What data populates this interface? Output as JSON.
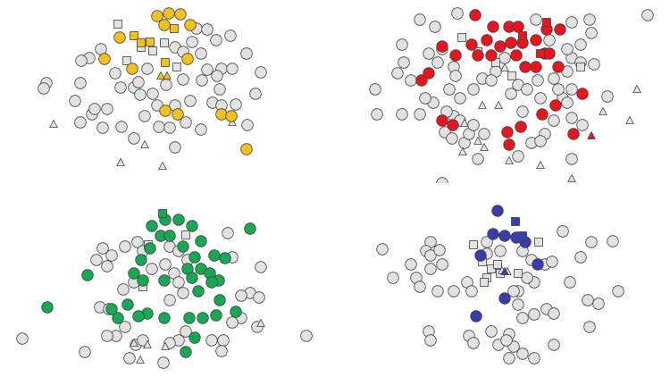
{
  "chart_data": [
    {
      "type": "scatter",
      "xlim": [
        0,
        370
      ],
      "ylim": [
        205,
        0
      ],
      "series": [
        {
          "color": "#e2e2e2",
          "marker": "circle",
          "x": [
            220,
            232,
            242,
            258,
            276,
            292,
            286,
            264,
            100,
            91,
            113,
            129,
            90,
            135,
            150,
            157,
            165,
            196,
            205,
            215,
            225,
            232,
            248,
            260,
            246,
            238,
            205,
            196,
            176,
            162,
            178,
            190,
            208,
            225,
            150,
            196,
            136,
            115,
            90,
            103,
            120,
            84,
            52,
            49,
            106,
            248,
            277,
            213,
            226,
            243,
            186,
            171,
            155
          ],
          "y": [
            32,
            33,
            45,
            40,
            60,
            81,
            105,
            117,
            65,
            68,
            55,
            82,
            93,
            98,
            98,
            106,
            77,
            53,
            58,
            47,
            60,
            78,
            77,
            77,
            100,
            115,
            89,
            118,
            118,
            130,
            142,
            143,
            137,
            145,
            155,
            165,
            142,
            143,
            137,
            128,
            122,
            113,
            93,
            99,
            122,
            118,
            140,
            113,
            90,
            85,
            95,
            105,
            92
          ]
        },
        {
          "color": "#e2e2e2",
          "marker": "square",
          "x": [
            132,
            142,
            198,
            158,
            184,
            171
          ],
          "y": [
            27,
            68,
            75,
            53,
            48,
            57
          ]
        },
        {
          "color": "#e2e2e2",
          "marker": "triangle",
          "x": [
            60,
            135,
            162,
            182,
            260
          ],
          "y": [
            139,
            182,
            162,
            186,
            137
          ]
        },
        {
          "color": "#f4c11a",
          "marker": "circle",
          "x": [
            176,
            189,
            202,
            184,
            213,
            134,
            117,
            148,
            210,
            185,
            199,
            248,
            259,
            276
          ],
          "y": [
            18,
            15,
            16,
            28,
            28,
            42,
            66,
            77,
            66,
            124,
            128,
            128,
            130,
            167
          ]
        },
        {
          "color": "#f4c11a",
          "marker": "square",
          "x": [
            150,
            168,
            158,
            185,
            195
          ],
          "y": [
            40,
            47,
            48,
            70,
            32
          ]
        },
        {
          "color": "#f4c11a",
          "marker": "triangle",
          "x": [
            180,
            187
          ],
          "y": [
            85,
            85
          ]
        }
      ]
    },
    {
      "type": "scatter",
      "xlim": [
        0,
        370
      ],
      "ylim": [
        205,
        0
      ],
      "series": [
        {
          "color": "#e2e2e2",
          "marker": "circle",
          "x": [
            90,
            107,
            132,
            220,
            260,
            280,
            282,
            345,
            70,
            72,
            65,
            80,
            40,
            42,
            70,
            90,
            115,
            128,
            130,
            123,
            135,
            150,
            160,
            175,
            192,
            200,
            210,
            222,
            240,
            255,
            260,
            270,
            285,
            300,
            260,
            250,
            240,
            260,
            272,
            255,
            230,
            215,
            200,
            225,
            260,
            128,
            118,
            126,
            140,
            155,
            162,
            145,
            205,
            225,
            245,
            270,
            255,
            235,
            185,
            170,
            115,
            150,
            135,
            120,
            105,
            96,
            110,
            100
          ],
          "y": [
            22,
            30,
            15,
            22,
            25,
            22,
            37,
            17,
            50,
            70,
            82,
            90,
            100,
            128,
            128,
            128,
            55,
            75,
            85,
            100,
            110,
            100,
            88,
            80,
            105,
            95,
            100,
            90,
            88,
            80,
            65,
            70,
            72,
            108,
            100,
            110,
            135,
            132,
            140,
            115,
            150,
            160,
            175,
            158,
            178,
            130,
            148,
            155,
            160,
            178,
            150,
            150,
            125,
            110,
            100,
            50,
            55,
            45,
            65,
            90,
            205,
            140,
            135,
            125,
            115,
            110,
            70,
            60
          ]
        },
        {
          "color": "#e2e2e2",
          "marker": "square",
          "x": [
            137,
            193,
            155,
            270,
            175
          ],
          "y": [
            42,
            85,
            58,
            75,
            70
          ]
        },
        {
          "color": "#e2e2e2",
          "marker": "triangle",
          "x": [
            185,
            160,
            178,
            140,
            155,
            138,
            162,
            190,
            225,
            260,
            295,
            325,
            333
          ],
          "y": [
            76,
            118,
            118,
            138,
            158,
            170,
            165,
            180,
            185,
            200,
            125,
            135,
            100
          ]
        },
        {
          "color": "#e8141e",
          "marker": "circle",
          "x": [
            152,
            172,
            190,
            200,
            165,
            180,
            192,
            148,
            155,
            170,
            205,
            220,
            232,
            247,
            230,
            220,
            208,
            198,
            115,
            130,
            100,
            92,
            115,
            127,
            203,
            190,
            188,
            227,
            242,
            262,
            272,
            235,
            245
          ],
          "y": [
            17,
            30,
            30,
            30,
            45,
            52,
            48,
            50,
            62,
            62,
            48,
            45,
            33,
            33,
            60,
            75,
            75,
            62,
            52,
            62,
            82,
            90,
            135,
            140,
            142,
            162,
            148,
            128,
            118,
            150,
            105,
            60,
            75
          ]
        },
        {
          "color": "#e8141e",
          "marker": "square",
          "x": [
            232,
            205,
            225
          ],
          "y": [
            25,
            40,
            60
          ]
        },
        {
          "color": "#e8141e",
          "marker": "triangle",
          "x": [
            282
          ],
          "y": [
            152
          ]
        }
      ]
    },
    {
      "type": "scatter",
      "xlim": [
        0,
        370
      ],
      "ylim": [
        205,
        0
      ],
      "series": [
        {
          "color": "#e2e2e2",
          "marker": "circle",
          "x": [
            115,
            125,
            140,
            154,
            160,
            190,
            200,
            210,
            185,
            195,
            200,
            205,
            170,
            150,
            138,
            190,
            260,
            255,
            292,
            280,
            290,
            270,
            288,
            343,
            237,
            250,
            248,
            200,
            190,
            152,
            160,
            130,
            120,
            112,
            122,
            140,
            108,
            120,
            25,
            95,
            145,
            183,
            208,
            270,
            260
          ],
          "y": [
            62,
            70,
            60,
            55,
            65,
            60,
            65,
            75,
            80,
            90,
            100,
            112,
            85,
            100,
            108,
            120,
            72,
            45,
            83,
            112,
            117,
            115,
            150,
            160,
            165,
            165,
            177,
            165,
            168,
            170,
            165,
            160,
            160,
            128,
            130,
            150,
            75,
            82,
            163,
            178,
            185,
            190,
            155,
            140,
            145
          ]
        },
        {
          "color": "#e2e2e2",
          "marker": "square",
          "x": [
            166,
            208,
            160
          ],
          "y": [
            58,
            47,
            105
          ]
        },
        {
          "color": "#e2e2e2",
          "marker": "triangle",
          "x": [
            150,
            165,
            185,
            157,
            292
          ],
          "y": [
            168,
            170,
            172,
            187,
            146
          ]
        },
        {
          "color": "#16a852",
          "marker": "circle",
          "x": [
            170,
            185,
            200,
            215,
            180,
            190,
            168,
            205,
            225,
            218,
            240,
            252,
            280,
            210,
            225,
            235,
            245,
            158,
            150,
            160,
            184,
            215,
            237,
            222,
            246,
            264,
            242,
            227,
            212,
            184,
            165,
            132,
            155,
            143,
            125,
            98,
            53,
            218,
            208
          ],
          "y": [
            37,
            30,
            30,
            37,
            48,
            48,
            62,
            60,
            54,
            72,
            70,
            73,
            40,
            85,
            85,
            90,
            98,
            75,
            90,
            98,
            98,
            95,
            100,
            110,
            120,
            133,
            137,
            140,
            140,
            140,
            135,
            140,
            138,
            125,
            130,
            92,
            128,
            162,
            178
          ]
        },
        {
          "color": "#16a852",
          "marker": "square",
          "x": [
            182
          ],
          "y": [
            23
          ]
        }
      ]
    },
    {
      "type": "scatter",
      "xlim": [
        0,
        370
      ],
      "ylim": [
        205,
        0
      ],
      "series": [
        {
          "color": "#e2e2e2",
          "marker": "circle",
          "x": [
            48,
            102,
            97,
            102,
            112,
            115,
            102,
            80,
            60,
            86,
            90,
            110,
            128,
            143,
            148,
            165,
            165,
            180,
            205,
            215,
            230,
            250,
            238,
            270,
            282,
            306,
            258,
            278,
            290,
            312,
            232,
            218,
            240,
            200,
            218,
            200,
            205,
            170,
            190,
            178,
            195,
            187,
            205,
            218,
            240,
            280,
            100,
            102,
            145,
            150,
            195,
            210,
            190
          ],
          "y": [
            63,
            55,
            65,
            70,
            64,
            80,
            85,
            80,
            95,
            95,
            105,
            110,
            110,
            100,
            110,
            55,
            68,
            65,
            65,
            75,
            80,
            43,
            77,
            72,
            55,
            54,
            100,
            120,
            124,
            110,
            130,
            136,
            135,
            110,
            100,
            125,
            140,
            155,
            158,
            170,
            172,
            165,
            180,
            185,
            170,
            150,
            155,
            165,
            160,
            168,
            110,
            95,
            185
          ]
        },
        {
          "color": "#e2e2e2",
          "marker": "square",
          "x": [
            150,
            160,
            170,
            165,
            180,
            200,
            223,
            177,
            162
          ],
          "y": [
            58,
            77,
            85,
            95,
            90,
            90,
            55,
            80,
            100
          ]
        },
        {
          "color": "#e2e2e2",
          "marker": "triangle",
          "x": [
            182,
            188
          ],
          "y": [
            87,
            88
          ]
        },
        {
          "color": "#3a3ab2",
          "marker": "circle",
          "x": [
            177,
            172,
            185,
            198,
            208,
            222,
            158,
            185,
            153
          ],
          "y": [
            20,
            46,
            48,
            50,
            55,
            80,
            70,
            118,
            138
          ]
        },
        {
          "color": "#3a3ab2",
          "marker": "square",
          "x": [
            197,
            205
          ],
          "y": [
            32,
            48
          ]
        },
        {
          "color": "#3a3ab2",
          "marker": "triangle",
          "x": [
            185
          ],
          "y": [
            88
          ]
        }
      ]
    }
  ]
}
